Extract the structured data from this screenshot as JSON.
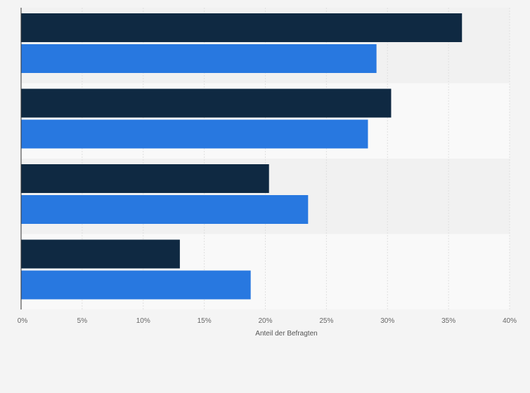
{
  "colors": {
    "background": "#f4f4f4",
    "band_dark": "#f1f1f1",
    "band_light": "#f9f9f9",
    "grid": "#e0e0e0",
    "series_1": "#0f2942",
    "series_2": "#2878e0"
  },
  "chart_data": {
    "type": "bar",
    "orientation": "horizontal",
    "categories": [
      "",
      "",
      "",
      ""
    ],
    "series": [
      {
        "values": [
          36.1,
          30.3,
          20.3,
          13.0
        ]
      },
      {
        "values": [
          29.1,
          28.4,
          23.5,
          18.8
        ]
      }
    ],
    "xlabel": "Anteil der Befragten",
    "ylabel": "",
    "xlim": [
      0,
      40
    ],
    "xticks": [
      "0%",
      "5%",
      "10%",
      "15%",
      "20%",
      "25%",
      "30%",
      "35%",
      "40%"
    ],
    "grid": true,
    "legend": "none"
  }
}
